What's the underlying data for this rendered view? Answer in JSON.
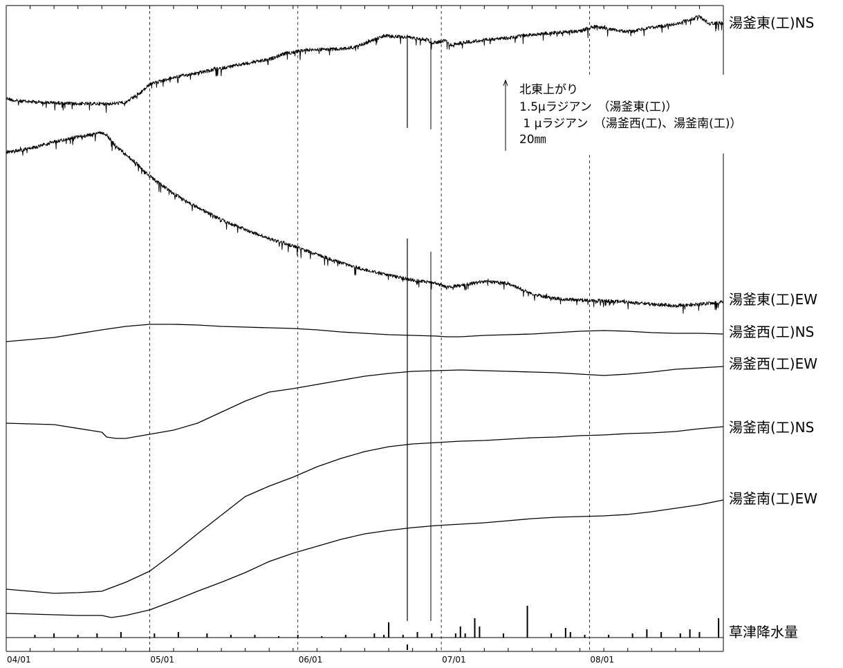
{
  "chart_data": {
    "type": "line",
    "x_axis": {
      "ticks": [
        "04/01",
        "05/01",
        "06/01",
        "07/01",
        "08/01"
      ],
      "tick_days": [
        0,
        30,
        61,
        91,
        122
      ],
      "range_days": [
        0,
        150
      ],
      "grid": "dashed-vertical"
    },
    "scale_note": {
      "lines": [
        "北東上がり",
        "1.5μラジアン　（湯釜東(工)）",
        " 1 μラジアン　（湯釜西(工)、湯釜南(工)）",
        "20㎜"
      ]
    },
    "series": [
      {
        "name": "湯釜東(工)NS",
        "noisy": true,
        "points": [
          [
            0,
            142
          ],
          [
            2,
            146
          ],
          [
            8,
            148
          ],
          [
            14,
            150
          ],
          [
            18,
            150
          ],
          [
            22,
            150
          ],
          [
            25,
            148
          ],
          [
            28,
            135
          ],
          [
            30,
            122
          ],
          [
            35,
            112
          ],
          [
            42,
            103
          ],
          [
            50,
            92
          ],
          [
            55,
            86
          ],
          [
            58,
            78
          ],
          [
            63,
            72
          ],
          [
            70,
            71
          ],
          [
            73,
            68
          ],
          [
            76,
            60
          ],
          [
            79,
            52
          ],
          [
            84,
            54
          ],
          [
            88,
            57
          ],
          [
            89,
            62
          ],
          [
            91,
            60
          ],
          [
            92,
            58
          ],
          [
            93,
            65
          ],
          [
            96,
            61
          ],
          [
            100,
            58
          ],
          [
            105,
            55
          ],
          [
            110,
            50
          ],
          [
            115,
            47
          ],
          [
            120,
            45
          ],
          [
            123,
            38
          ],
          [
            126,
            42
          ],
          [
            130,
            46
          ],
          [
            135,
            40
          ],
          [
            140,
            35
          ],
          [
            143,
            28
          ],
          [
            145,
            24
          ],
          [
            147,
            34
          ],
          [
            150,
            33
          ]
        ],
        "color": "#000000"
      },
      {
        "name": "湯釜東(工)EW",
        "noisy": true,
        "points": [
          [
            0,
            220
          ],
          [
            5,
            215
          ],
          [
            10,
            205
          ],
          [
            15,
            198
          ],
          [
            20,
            192
          ],
          [
            21,
            195
          ],
          [
            23,
            212
          ],
          [
            27,
            235
          ],
          [
            30,
            255
          ],
          [
            35,
            280
          ],
          [
            40,
            300
          ],
          [
            45,
            318
          ],
          [
            50,
            332
          ],
          [
            55,
            345
          ],
          [
            60,
            356
          ],
          [
            65,
            368
          ],
          [
            70,
            380
          ],
          [
            75,
            390
          ],
          [
            80,
            398
          ],
          [
            85,
            405
          ],
          [
            88,
            408
          ],
          [
            90,
            410
          ],
          [
            92,
            415
          ],
          [
            95,
            413
          ],
          [
            100,
            407
          ],
          [
            102,
            408
          ],
          [
            105,
            410
          ],
          [
            110,
            425
          ],
          [
            115,
            432
          ],
          [
            120,
            434
          ],
          [
            125,
            435
          ],
          [
            130,
            437
          ],
          [
            135,
            440
          ],
          [
            140,
            442
          ],
          [
            145,
            440
          ],
          [
            150,
            437
          ]
        ],
        "color": "#000000"
      },
      {
        "name": "湯釜西(工)NS",
        "noisy": false,
        "points": [
          [
            0,
            494
          ],
          [
            10,
            488
          ],
          [
            20,
            477
          ],
          [
            25,
            472
          ],
          [
            30,
            469
          ],
          [
            35,
            469
          ],
          [
            40,
            470
          ],
          [
            45,
            472
          ],
          [
            50,
            473
          ],
          [
            55,
            474
          ],
          [
            60,
            475
          ],
          [
            65,
            477
          ],
          [
            70,
            480
          ],
          [
            75,
            482
          ],
          [
            80,
            484
          ],
          [
            85,
            485
          ],
          [
            90,
            486
          ],
          [
            92,
            487
          ],
          [
            95,
            487
          ],
          [
            100,
            485
          ],
          [
            105,
            484
          ],
          [
            110,
            483
          ],
          [
            115,
            481
          ],
          [
            120,
            479
          ],
          [
            125,
            478
          ],
          [
            130,
            479
          ],
          [
            135,
            481
          ],
          [
            140,
            482
          ],
          [
            145,
            482
          ],
          [
            150,
            483
          ]
        ],
        "color": "#000000"
      },
      {
        "name": "湯釜西(工)EW",
        "noisy": false,
        "points": [
          [
            0,
            612
          ],
          [
            10,
            614
          ],
          [
            20,
            625
          ],
          [
            21,
            632
          ],
          [
            23,
            634
          ],
          [
            25,
            634
          ],
          [
            30,
            628
          ],
          [
            35,
            622
          ],
          [
            40,
            612
          ],
          [
            45,
            596
          ],
          [
            50,
            580
          ],
          [
            55,
            567
          ],
          [
            60,
            562
          ],
          [
            65,
            556
          ],
          [
            70,
            550
          ],
          [
            75,
            544
          ],
          [
            80,
            540
          ],
          [
            85,
            537
          ],
          [
            90,
            536
          ],
          [
            95,
            535
          ],
          [
            100,
            536
          ],
          [
            105,
            537
          ],
          [
            110,
            538
          ],
          [
            115,
            539
          ],
          [
            120,
            541
          ],
          [
            125,
            543
          ],
          [
            130,
            541
          ],
          [
            135,
            538
          ],
          [
            140,
            534
          ],
          [
            145,
            532
          ],
          [
            150,
            530
          ]
        ],
        "color": "#000000"
      },
      {
        "name": "湯釜南(工)NS",
        "noisy": false,
        "points": [
          [
            0,
            852
          ],
          [
            5,
            855
          ],
          [
            10,
            858
          ],
          [
            15,
            857
          ],
          [
            20,
            855
          ],
          [
            25,
            842
          ],
          [
            30,
            826
          ],
          [
            35,
            800
          ],
          [
            40,
            772
          ],
          [
            45,
            745
          ],
          [
            50,
            718
          ],
          [
            55,
            703
          ],
          [
            60,
            690
          ],
          [
            65,
            675
          ],
          [
            70,
            663
          ],
          [
            75,
            653
          ],
          [
            80,
            646
          ],
          [
            85,
            642
          ],
          [
            90,
            640
          ],
          [
            95,
            638
          ],
          [
            100,
            637
          ],
          [
            105,
            635
          ],
          [
            110,
            633
          ],
          [
            115,
            632
          ],
          [
            120,
            630
          ],
          [
            125,
            629
          ],
          [
            130,
            627
          ],
          [
            135,
            626
          ],
          [
            140,
            624
          ],
          [
            145,
            620
          ],
          [
            150,
            617
          ]
        ],
        "color": "#000000"
      },
      {
        "name": "湯釜南(工)EW",
        "noisy": false,
        "points": [
          [
            0,
            887
          ],
          [
            5,
            888
          ],
          [
            10,
            889
          ],
          [
            15,
            890
          ],
          [
            20,
            890
          ],
          [
            22,
            893
          ],
          [
            25,
            890
          ],
          [
            30,
            882
          ],
          [
            35,
            869
          ],
          [
            40,
            855
          ],
          [
            45,
            842
          ],
          [
            50,
            828
          ],
          [
            55,
            812
          ],
          [
            60,
            800
          ],
          [
            65,
            790
          ],
          [
            70,
            780
          ],
          [
            75,
            772
          ],
          [
            80,
            767
          ],
          [
            85,
            763
          ],
          [
            90,
            760
          ],
          [
            95,
            758
          ],
          [
            100,
            756
          ],
          [
            105,
            753
          ],
          [
            110,
            750
          ],
          [
            115,
            748
          ],
          [
            120,
            747
          ],
          [
            125,
            746
          ],
          [
            130,
            744
          ],
          [
            135,
            740
          ],
          [
            140,
            735
          ],
          [
            145,
            730
          ],
          [
            150,
            723
          ]
        ],
        "color": "#000000"
      },
      {
        "name": "草津降水量",
        "type": "bar",
        "baseline": 922,
        "bars": [
          [
            6,
            2
          ],
          [
            10,
            3
          ],
          [
            15,
            2
          ],
          [
            19,
            3
          ],
          [
            24,
            4
          ],
          [
            31,
            3
          ],
          [
            36,
            4
          ],
          [
            42,
            3
          ],
          [
            47,
            2
          ],
          [
            52,
            2
          ],
          [
            57,
            1
          ],
          [
            61,
            2
          ],
          [
            66,
            1
          ],
          [
            71,
            2
          ],
          [
            77,
            3
          ],
          [
            79,
            2
          ],
          [
            80,
            11
          ],
          [
            83,
            2
          ],
          [
            86,
            4
          ],
          [
            89,
            3
          ],
          [
            94,
            3
          ],
          [
            95,
            8
          ],
          [
            96,
            3
          ],
          [
            98,
            14
          ],
          [
            99,
            8
          ],
          [
            104,
            3
          ],
          [
            109,
            23
          ],
          [
            114,
            3
          ],
          [
            117,
            7
          ],
          [
            118,
            4
          ],
          [
            121,
            2
          ],
          [
            126,
            2
          ],
          [
            131,
            3
          ],
          [
            134,
            6
          ],
          [
            137,
            4
          ],
          [
            141,
            3
          ],
          [
            143,
            6
          ],
          [
            145,
            4
          ],
          [
            149,
            14
          ]
        ],
        "color": "#000000"
      }
    ]
  }
}
